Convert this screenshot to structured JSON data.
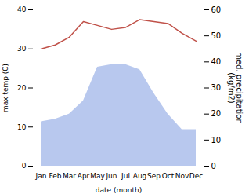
{
  "chart_data": {
    "type": "line",
    "categories": [
      "Jan",
      "Feb",
      "Mar",
      "Apr",
      "May",
      "Jun",
      "Jul",
      "Aug",
      "Sep",
      "Oct",
      "Nov",
      "Dec"
    ],
    "xlabel": "date (month)",
    "ylabel": "max temp (C)",
    "y2label": "med. precipitation\n(kg/m2)",
    "ylim": [
      0,
      40
    ],
    "yticks": [
      0,
      10,
      20,
      30,
      40
    ],
    "y2lim": [
      0,
      60
    ],
    "y2ticks": [
      0,
      10,
      20,
      30,
      40,
      50,
      60
    ],
    "series": [
      {
        "type": "area",
        "axis": "y2",
        "color": "#b8c8ee",
        "values": [
          17,
          18,
          20,
          25,
          38,
          39,
          39,
          37,
          28,
          20,
          14,
          14
        ]
      },
      {
        "type": "line",
        "color": "#c0524a",
        "values": [
          30,
          31,
          33,
          37,
          36,
          35,
          35.5,
          37.5,
          37,
          36.5,
          34,
          32
        ]
      }
    ]
  }
}
